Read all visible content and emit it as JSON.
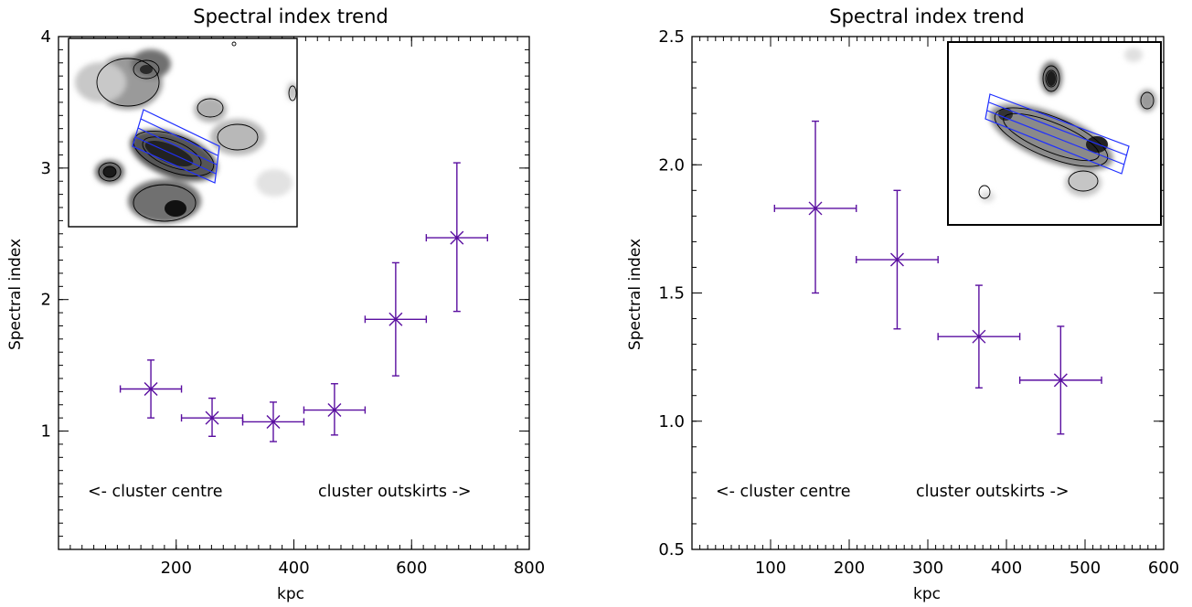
{
  "chart_data": [
    {
      "type": "scatter",
      "title": "Spectral index trend",
      "xlabel": "kpc",
      "ylabel": "Spectral index",
      "xlim": [
        0,
        800
      ],
      "ylim": [
        0.1,
        4.0
      ],
      "x_ticks": [
        200,
        400,
        600,
        800
      ],
      "y_ticks": [
        1,
        2,
        3,
        4
      ],
      "y_tick_format": "int",
      "annotations": [
        "<- cluster centre",
        "cluster outskirts ->"
      ],
      "series_color": "#5a0fa0",
      "inset": "radio contour map with blue extraction regions",
      "points": [
        {
          "x": 157,
          "y": 1.32,
          "xerr": 52,
          "yerr_low": 0.22,
          "yerr_high": 0.22
        },
        {
          "x": 261,
          "y": 1.1,
          "xerr": 52,
          "yerr_low": 0.14,
          "yerr_high": 0.15
        },
        {
          "x": 365,
          "y": 1.07,
          "xerr": 52,
          "yerr_low": 0.15,
          "yerr_high": 0.15
        },
        {
          "x": 469,
          "y": 1.16,
          "xerr": 52,
          "yerr_low": 0.19,
          "yerr_high": 0.2
        },
        {
          "x": 573,
          "y": 1.85,
          "xerr": 52,
          "yerr_low": 0.43,
          "yerr_high": 0.43
        },
        {
          "x": 677,
          "y": 2.47,
          "xerr": 52,
          "yerr_low": 0.56,
          "yerr_high": 0.57
        }
      ]
    },
    {
      "type": "scatter",
      "title": "Spectral index trend",
      "xlabel": "kpc",
      "ylabel": "Spectral index",
      "xlim": [
        0,
        600
      ],
      "ylim": [
        0.5,
        2.5
      ],
      "x_ticks": [
        100,
        200,
        300,
        400,
        500,
        600
      ],
      "y_ticks": [
        0.5,
        1.0,
        1.5,
        2.0,
        2.5
      ],
      "y_tick_format": "1dp",
      "annotations": [
        "<- cluster centre",
        "cluster outskirts ->"
      ],
      "series_color": "#5a0fa0",
      "inset": "radio contour map with blue extraction regions",
      "points": [
        {
          "x": 157,
          "y": 1.83,
          "xerr": 52,
          "yerr_low": 0.33,
          "yerr_high": 0.34
        },
        {
          "x": 261,
          "y": 1.63,
          "xerr": 52,
          "yerr_low": 0.27,
          "yerr_high": 0.27
        },
        {
          "x": 365,
          "y": 1.33,
          "xerr": 52,
          "yerr_low": 0.2,
          "yerr_high": 0.2
        },
        {
          "x": 469,
          "y": 1.16,
          "xerr": 52,
          "yerr_low": 0.21,
          "yerr_high": 0.21
        }
      ]
    }
  ]
}
